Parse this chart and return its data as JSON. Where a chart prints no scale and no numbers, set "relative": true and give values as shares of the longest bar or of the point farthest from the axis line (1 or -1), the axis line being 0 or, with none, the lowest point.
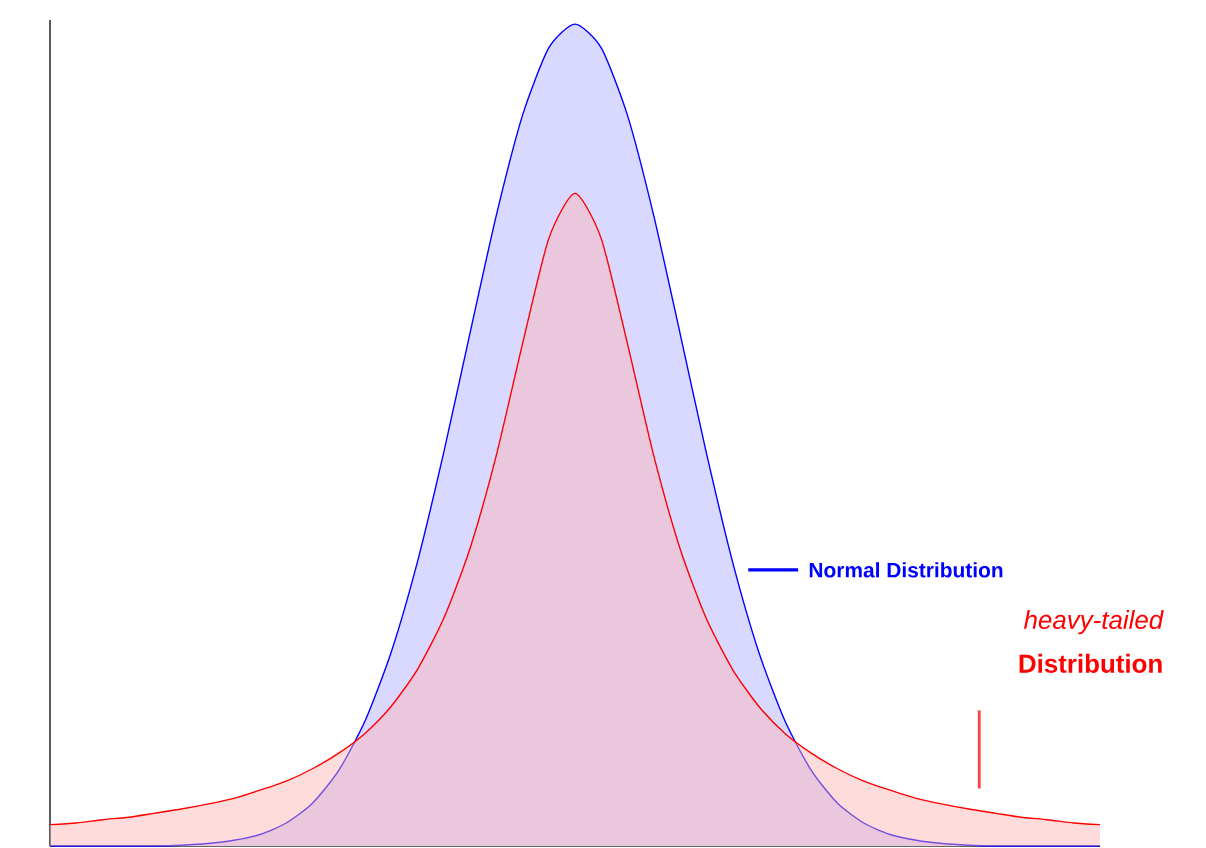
{
  "chart_data": {
    "type": "area",
    "relative": true,
    "legend": "right",
    "categories": [
      null,
      null,
      null,
      null,
      null,
      null,
      null,
      null,
      null,
      null,
      null,
      null,
      null,
      null,
      null,
      null,
      null,
      null,
      null,
      null,
      null,
      null,
      null,
      null,
      null,
      null,
      null,
      null,
      null,
      null,
      null,
      null,
      null,
      null,
      null,
      null,
      null,
      null,
      null,
      null,
      null
    ],
    "series": [
      {
        "name": "Normal Distribution",
        "color": "#0000ff",
        "values": [
          0,
          0,
          0,
          0,
          0,
          0.001,
          0.003,
          0.007,
          0.014,
          0.028,
          0.052,
          0.092,
          0.152,
          0.236,
          0.346,
          0.479,
          0.624,
          0.767,
          0.889,
          0.971,
          1,
          0.971,
          0.889,
          0.767,
          0.624,
          0.479,
          0.346,
          0.236,
          0.152,
          0.092,
          0.052,
          0.028,
          0.014,
          0.007,
          0.003,
          0.001,
          0,
          0,
          0,
          0,
          0
        ]
      },
      {
        "name": "*heavy-tailed* **Distribution**",
        "color": "#ff0000",
        "values": [
          0.026,
          0.028,
          0.032,
          0.035,
          0.04,
          0.045,
          0.051,
          0.058,
          0.068,
          0.079,
          0.094,
          0.113,
          0.137,
          0.17,
          0.215,
          0.277,
          0.362,
          0.475,
          0.611,
          0.739,
          0.794,
          0.739,
          0.611,
          0.475,
          0.362,
          0.277,
          0.215,
          0.17,
          0.137,
          0.113,
          0.094,
          0.079,
          0.068,
          0.058,
          0.051,
          0.045,
          0.04,
          0.035,
          0.032,
          0.028,
          0.026
        ]
      }
    ]
  }
}
